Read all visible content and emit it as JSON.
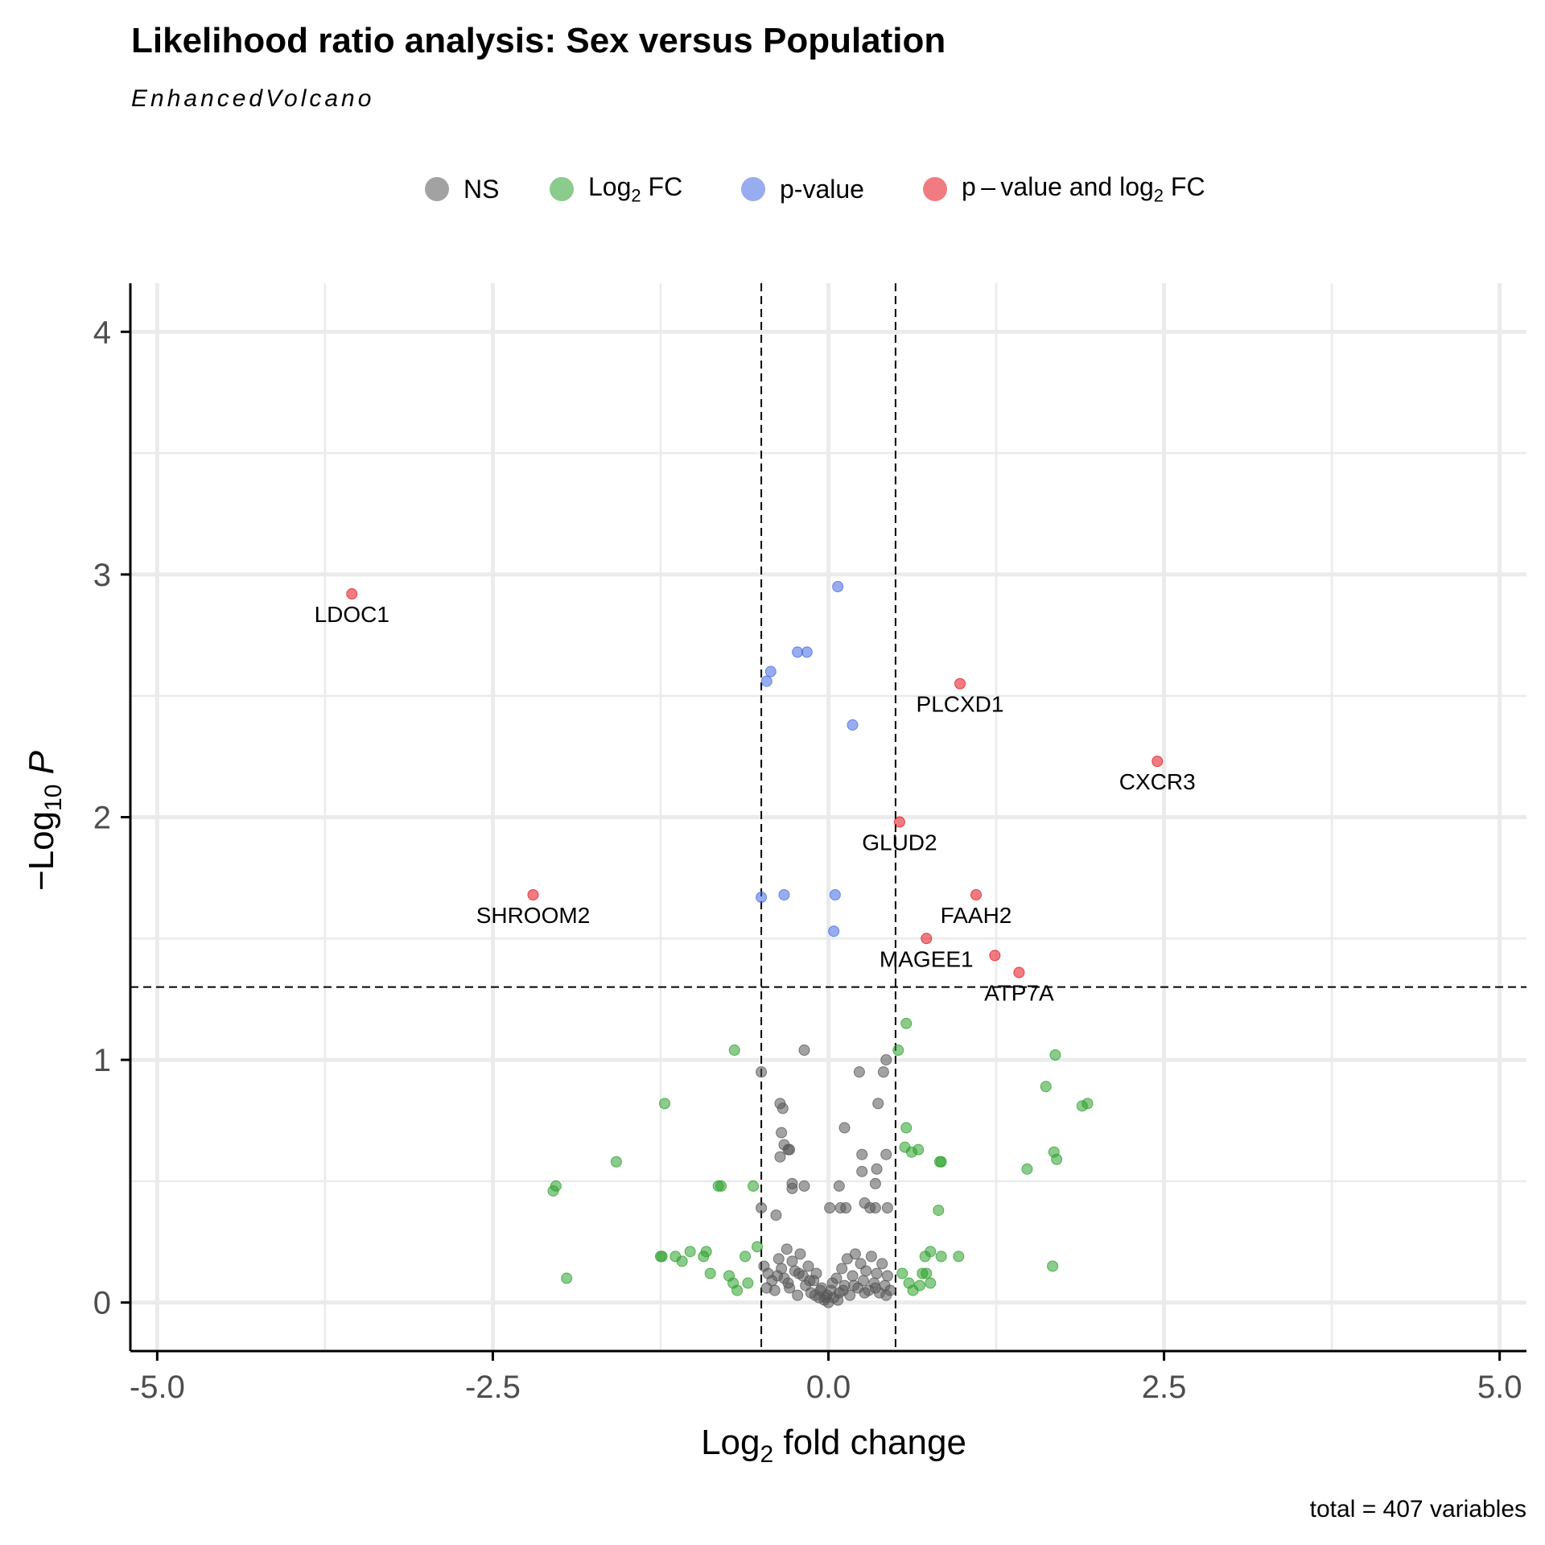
{
  "chart_data": {
    "type": "scatter",
    "title": "Likelihood ratio analysis: Sex versus Population",
    "subtitle": "EnhancedVolcano",
    "caption": "total = 407 variables",
    "xlabel": "Log2 fold change",
    "ylabel": "-Log10 P",
    "xlim": [
      -5.2,
      5.2
    ],
    "ylim": [
      -0.2,
      4.2
    ],
    "x_ticks": [
      "-5.0",
      "-2.5",
      "0.0",
      "2.5",
      "5.0"
    ],
    "x_tick_values": [
      -5.0,
      -2.5,
      0.0,
      2.5,
      5.0
    ],
    "y_ticks": [
      "0",
      "1",
      "2",
      "3",
      "4"
    ],
    "y_tick_values": [
      0,
      1,
      2,
      3,
      4
    ],
    "grid": true,
    "legend_position": "top",
    "cutoffs": {
      "fc": [
        -0.5,
        0.5
      ],
      "p": 1.3
    },
    "legend": [
      {
        "key": "NS",
        "label": "NS",
        "color": "#555555"
      },
      {
        "key": "fc",
        "label": "Log",
        "sub": "2",
        "suffix": " FC",
        "color": "#2ca02c"
      },
      {
        "key": "p",
        "label": "p-value",
        "color": "#4169e1"
      },
      {
        "key": "both",
        "label": "p – value and log",
        "sub": "2",
        "suffix": " FC",
        "color": "#e3111b"
      }
    ],
    "series": [
      {
        "name": "p - value and log2 FC",
        "color": "#e3111b",
        "points": [
          {
            "x": -3.55,
            "y": 2.92,
            "label": "LDOC1"
          },
          {
            "x": -2.2,
            "y": 1.68,
            "label": "SHROOM2"
          },
          {
            "x": 0.98,
            "y": 2.55,
            "label": "PLCXD1"
          },
          {
            "x": 2.45,
            "y": 2.23,
            "label": "CXCR3"
          },
          {
            "x": 0.53,
            "y": 1.98,
            "label": "GLUD2"
          },
          {
            "x": 1.1,
            "y": 1.68,
            "label": "FAAH2"
          },
          {
            "x": 0.73,
            "y": 1.5,
            "label": "MAGEE1"
          },
          {
            "x": 1.24,
            "y": 1.43,
            "label": ""
          },
          {
            "x": 1.42,
            "y": 1.36,
            "label": "ATP7A"
          }
        ]
      },
      {
        "name": "p-value",
        "color": "#4169e1",
        "points": [
          {
            "x": 0.07,
            "y": 2.95
          },
          {
            "x": -0.23,
            "y": 2.68
          },
          {
            "x": -0.16,
            "y": 2.68
          },
          {
            "x": -0.43,
            "y": 2.6
          },
          {
            "x": -0.46,
            "y": 2.56
          },
          {
            "x": 0.18,
            "y": 2.38
          },
          {
            "x": -0.5,
            "y": 1.67
          },
          {
            "x": -0.33,
            "y": 1.68
          },
          {
            "x": 0.05,
            "y": 1.68
          },
          {
            "x": 0.04,
            "y": 1.53
          }
        ]
      },
      {
        "name": "Log2 FC",
        "color": "#2ca02c",
        "points": [
          {
            "x": -2.05,
            "y": 0.46
          },
          {
            "x": -2.03,
            "y": 0.48
          },
          {
            "x": -1.95,
            "y": 0.1
          },
          {
            "x": -1.58,
            "y": 0.58
          },
          {
            "x": -1.22,
            "y": 0.82
          },
          {
            "x": -1.25,
            "y": 0.19
          },
          {
            "x": -1.24,
            "y": 0.19
          },
          {
            "x": -1.14,
            "y": 0.19
          },
          {
            "x": -1.09,
            "y": 0.17
          },
          {
            "x": -1.03,
            "y": 0.21
          },
          {
            "x": -0.93,
            "y": 0.19
          },
          {
            "x": -0.91,
            "y": 0.21
          },
          {
            "x": -0.88,
            "y": 0.12
          },
          {
            "x": -0.82,
            "y": 0.48
          },
          {
            "x": -0.8,
            "y": 0.48
          },
          {
            "x": -0.74,
            "y": 0.11
          },
          {
            "x": -0.71,
            "y": 0.08
          },
          {
            "x": -0.68,
            "y": 0.05
          },
          {
            "x": -0.62,
            "y": 0.19
          },
          {
            "x": -0.6,
            "y": 0.08
          },
          {
            "x": -0.56,
            "y": 0.48
          },
          {
            "x": -0.53,
            "y": 0.23
          },
          {
            "x": -0.7,
            "y": 1.04
          },
          {
            "x": 0.52,
            "y": 1.04
          },
          {
            "x": 0.58,
            "y": 1.15
          },
          {
            "x": 0.58,
            "y": 0.72
          },
          {
            "x": 0.57,
            "y": 0.64
          },
          {
            "x": 0.62,
            "y": 0.62
          },
          {
            "x": 0.67,
            "y": 0.63
          },
          {
            "x": 0.83,
            "y": 0.58
          },
          {
            "x": 0.84,
            "y": 0.58
          },
          {
            "x": 0.82,
            "y": 0.38
          },
          {
            "x": 0.55,
            "y": 0.12
          },
          {
            "x": 0.6,
            "y": 0.08
          },
          {
            "x": 0.63,
            "y": 0.05
          },
          {
            "x": 0.68,
            "y": 0.07
          },
          {
            "x": 0.7,
            "y": 0.12
          },
          {
            "x": 0.73,
            "y": 0.12
          },
          {
            "x": 0.72,
            "y": 0.19
          },
          {
            "x": 0.76,
            "y": 0.21
          },
          {
            "x": 0.76,
            "y": 0.08
          },
          {
            "x": 0.84,
            "y": 0.19
          },
          {
            "x": 0.97,
            "y": 0.19
          },
          {
            "x": 1.48,
            "y": 0.55
          },
          {
            "x": 1.62,
            "y": 0.89
          },
          {
            "x": 1.67,
            "y": 0.15
          },
          {
            "x": 1.68,
            "y": 0.62
          },
          {
            "x": 1.69,
            "y": 1.02
          },
          {
            "x": 1.7,
            "y": 0.59
          },
          {
            "x": 1.89,
            "y": 0.81
          },
          {
            "x": 1.93,
            "y": 0.82
          }
        ]
      },
      {
        "name": "NS",
        "color": "#555555",
        "points": [
          {
            "x": -0.18,
            "y": 1.04
          },
          {
            "x": 0.43,
            "y": 1.0
          },
          {
            "x": 0.23,
            "y": 0.95
          },
          {
            "x": 0.41,
            "y": 0.95
          },
          {
            "x": -0.5,
            "y": 0.95
          },
          {
            "x": -0.36,
            "y": 0.82
          },
          {
            "x": -0.34,
            "y": 0.8
          },
          {
            "x": 0.37,
            "y": 0.82
          },
          {
            "x": 0.12,
            "y": 0.72
          },
          {
            "x": -0.35,
            "y": 0.7
          },
          {
            "x": -0.33,
            "y": 0.65
          },
          {
            "x": -0.3,
            "y": 0.63
          },
          {
            "x": -0.29,
            "y": 0.63
          },
          {
            "x": -0.36,
            "y": 0.6
          },
          {
            "x": 0.25,
            "y": 0.61
          },
          {
            "x": 0.43,
            "y": 0.61
          },
          {
            "x": 0.36,
            "y": 0.55
          },
          {
            "x": 0.25,
            "y": 0.54
          },
          {
            "x": -0.27,
            "y": 0.49
          },
          {
            "x": -0.27,
            "y": 0.47
          },
          {
            "x": -0.18,
            "y": 0.48
          },
          {
            "x": 0.08,
            "y": 0.48
          },
          {
            "x": 0.35,
            "y": 0.49
          },
          {
            "x": -0.5,
            "y": 0.39
          },
          {
            "x": -0.39,
            "y": 0.36
          },
          {
            "x": 0.01,
            "y": 0.39
          },
          {
            "x": 0.09,
            "y": 0.39
          },
          {
            "x": 0.13,
            "y": 0.39
          },
          {
            "x": 0.27,
            "y": 0.41
          },
          {
            "x": 0.31,
            "y": 0.39
          },
          {
            "x": 0.35,
            "y": 0.39
          },
          {
            "x": 0.44,
            "y": 0.39
          },
          {
            "x": -0.48,
            "y": 0.15
          },
          {
            "x": -0.45,
            "y": 0.12
          },
          {
            "x": -0.42,
            "y": 0.09
          },
          {
            "x": -0.4,
            "y": 0.05
          },
          {
            "x": -0.37,
            "y": 0.18
          },
          {
            "x": -0.35,
            "y": 0.14
          },
          {
            "x": -0.33,
            "y": 0.1
          },
          {
            "x": -0.31,
            "y": 0.22
          },
          {
            "x": -0.29,
            "y": 0.06
          },
          {
            "x": -0.27,
            "y": 0.17
          },
          {
            "x": -0.25,
            "y": 0.13
          },
          {
            "x": -0.23,
            "y": 0.03
          },
          {
            "x": -0.21,
            "y": 0.2
          },
          {
            "x": -0.19,
            "y": 0.11
          },
          {
            "x": -0.17,
            "y": 0.07
          },
          {
            "x": -0.15,
            "y": 0.15
          },
          {
            "x": -0.13,
            "y": 0.04
          },
          {
            "x": -0.11,
            "y": 0.09
          },
          {
            "x": -0.09,
            "y": 0.12
          },
          {
            "x": -0.07,
            "y": 0.02
          },
          {
            "x": -0.05,
            "y": 0.06
          },
          {
            "x": -0.03,
            "y": 0.01
          },
          {
            "x": -0.01,
            "y": 0.03
          },
          {
            "x": 0.0,
            "y": 0.0
          },
          {
            "x": 0.02,
            "y": 0.05
          },
          {
            "x": 0.04,
            "y": 0.02
          },
          {
            "x": 0.06,
            "y": 0.1
          },
          {
            "x": 0.08,
            "y": 0.04
          },
          {
            "x": 0.1,
            "y": 0.14
          },
          {
            "x": 0.12,
            "y": 0.07
          },
          {
            "x": 0.14,
            "y": 0.18
          },
          {
            "x": 0.16,
            "y": 0.03
          },
          {
            "x": 0.18,
            "y": 0.11
          },
          {
            "x": 0.2,
            "y": 0.2
          },
          {
            "x": 0.22,
            "y": 0.06
          },
          {
            "x": 0.24,
            "y": 0.16
          },
          {
            "x": 0.26,
            "y": 0.09
          },
          {
            "x": 0.28,
            "y": 0.13
          },
          {
            "x": 0.3,
            "y": 0.05
          },
          {
            "x": 0.32,
            "y": 0.19
          },
          {
            "x": 0.34,
            "y": 0.08
          },
          {
            "x": 0.36,
            "y": 0.12
          },
          {
            "x": 0.38,
            "y": 0.04
          },
          {
            "x": 0.4,
            "y": 0.16
          },
          {
            "x": 0.42,
            "y": 0.07
          },
          {
            "x": 0.44,
            "y": 0.11
          },
          {
            "x": 0.46,
            "y": 0.05
          },
          {
            "x": -0.46,
            "y": 0.06
          },
          {
            "x": -0.38,
            "y": 0.11
          },
          {
            "x": -0.3,
            "y": 0.08
          },
          {
            "x": -0.22,
            "y": 0.12
          },
          {
            "x": -0.14,
            "y": 0.09
          },
          {
            "x": -0.06,
            "y": 0.05
          },
          {
            "x": 0.03,
            "y": 0.08
          },
          {
            "x": 0.11,
            "y": 0.05
          },
          {
            "x": 0.19,
            "y": 0.07
          },
          {
            "x": 0.27,
            "y": 0.04
          },
          {
            "x": 0.35,
            "y": 0.06
          },
          {
            "x": 0.43,
            "y": 0.03
          },
          {
            "x": -0.02,
            "y": 0.02
          },
          {
            "x": 0.07,
            "y": 0.01
          },
          {
            "x": -0.1,
            "y": 0.03
          }
        ]
      }
    ]
  }
}
